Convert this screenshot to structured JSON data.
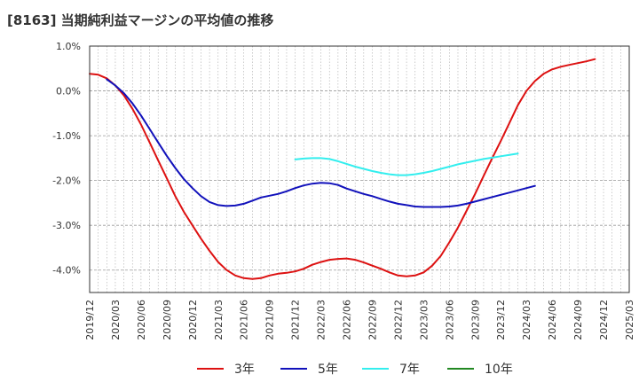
{
  "title": "[8163]  当期純利益マージンの平均値の推移",
  "chart_data": {
    "type": "line",
    "title": "[8163]  当期純利益マージンの平均値の推移",
    "xlabel": "",
    "ylabel": "",
    "ylim": [
      -4.5,
      1.0
    ],
    "y_ticks": [
      1.0,
      0.0,
      -1.0,
      -2.0,
      -3.0,
      -4.0
    ],
    "y_tick_labels": [
      "1.0%",
      "0.0%",
      "-1.0%",
      "-2.0%",
      "-3.0%",
      "-4.0%"
    ],
    "x_tick_labels": [
      "2019/12",
      "2020/03",
      "2020/06",
      "2020/09",
      "2020/12",
      "2021/03",
      "2021/06",
      "2021/09",
      "2021/12",
      "2022/03",
      "2022/06",
      "2022/09",
      "2022/12",
      "2023/03",
      "2023/06",
      "2023/09",
      "2023/12",
      "2024/03",
      "2024/06",
      "2024/09",
      "2024/12",
      "2025/03"
    ],
    "grid": true,
    "legend_position": "bottom",
    "series": [
      {
        "name": "3年",
        "color": "#dd1111",
        "points": [
          [
            "2019/12",
            0.38
          ],
          [
            "2020/01",
            0.36
          ],
          [
            "2020/02",
            0.28
          ],
          [
            "2020/03",
            0.12
          ],
          [
            "2020/04",
            -0.1
          ],
          [
            "2020/05",
            -0.4
          ],
          [
            "2020/06",
            -0.75
          ],
          [
            "2020/07",
            -1.15
          ],
          [
            "2020/08",
            -1.55
          ],
          [
            "2020/09",
            -1.95
          ],
          [
            "2020/10",
            -2.35
          ],
          [
            "2020/11",
            -2.7
          ],
          [
            "2020/12",
            -3.0
          ],
          [
            "2021/01",
            -3.3
          ],
          [
            "2021/02",
            -3.57
          ],
          [
            "2021/03",
            -3.82
          ],
          [
            "2021/04",
            -4.0
          ],
          [
            "2021/05",
            -4.12
          ],
          [
            "2021/06",
            -4.18
          ],
          [
            "2021/07",
            -4.2
          ],
          [
            "2021/08",
            -4.18
          ],
          [
            "2021/09",
            -4.12
          ],
          [
            "2021/10",
            -4.08
          ],
          [
            "2021/11",
            -4.06
          ],
          [
            "2021/12",
            -4.03
          ],
          [
            "2022/01",
            -3.97
          ],
          [
            "2022/02",
            -3.88
          ],
          [
            "2022/03",
            -3.82
          ],
          [
            "2022/04",
            -3.77
          ],
          [
            "2022/05",
            -3.75
          ],
          [
            "2022/06",
            -3.74
          ],
          [
            "2022/07",
            -3.77
          ],
          [
            "2022/08",
            -3.83
          ],
          [
            "2022/09",
            -3.9
          ],
          [
            "2022/10",
            -3.97
          ],
          [
            "2022/11",
            -4.05
          ],
          [
            "2022/12",
            -4.12
          ],
          [
            "2023/01",
            -4.14
          ],
          [
            "2023/02",
            -4.12
          ],
          [
            "2023/03",
            -4.05
          ],
          [
            "2023/04",
            -3.9
          ],
          [
            "2023/05",
            -3.68
          ],
          [
            "2023/06",
            -3.38
          ],
          [
            "2023/07",
            -3.05
          ],
          [
            "2023/08",
            -2.68
          ],
          [
            "2023/09",
            -2.3
          ],
          [
            "2023/10",
            -1.9
          ],
          [
            "2023/11",
            -1.5
          ],
          [
            "2023/12",
            -1.12
          ],
          [
            "2024/01",
            -0.72
          ],
          [
            "2024/02",
            -0.32
          ],
          [
            "2024/03",
            0.0
          ],
          [
            "2024/04",
            0.22
          ],
          [
            "2024/05",
            0.38
          ],
          [
            "2024/06",
            0.48
          ],
          [
            "2024/07",
            0.54
          ],
          [
            "2024/08",
            0.58
          ],
          [
            "2024/09",
            0.62
          ],
          [
            "2024/10",
            0.66
          ],
          [
            "2024/11",
            0.71
          ]
        ]
      },
      {
        "name": "5年",
        "color": "#1111bb",
        "points": [
          [
            "2020/02",
            0.26
          ],
          [
            "2020/03",
            0.12
          ],
          [
            "2020/04",
            -0.05
          ],
          [
            "2020/05",
            -0.28
          ],
          [
            "2020/06",
            -0.55
          ],
          [
            "2020/07",
            -0.85
          ],
          [
            "2020/08",
            -1.15
          ],
          [
            "2020/09",
            -1.45
          ],
          [
            "2020/10",
            -1.72
          ],
          [
            "2020/11",
            -1.97
          ],
          [
            "2020/12",
            -2.17
          ],
          [
            "2021/01",
            -2.35
          ],
          [
            "2021/02",
            -2.48
          ],
          [
            "2021/03",
            -2.55
          ],
          [
            "2021/04",
            -2.57
          ],
          [
            "2021/05",
            -2.56
          ],
          [
            "2021/06",
            -2.52
          ],
          [
            "2021/07",
            -2.45
          ],
          [
            "2021/08",
            -2.38
          ],
          [
            "2021/09",
            -2.34
          ],
          [
            "2021/10",
            -2.3
          ],
          [
            "2021/11",
            -2.24
          ],
          [
            "2021/12",
            -2.17
          ],
          [
            "2022/01",
            -2.11
          ],
          [
            "2022/02",
            -2.07
          ],
          [
            "2022/03",
            -2.05
          ],
          [
            "2022/04",
            -2.06
          ],
          [
            "2022/05",
            -2.1
          ],
          [
            "2022/06",
            -2.18
          ],
          [
            "2022/07",
            -2.24
          ],
          [
            "2022/08",
            -2.3
          ],
          [
            "2022/09",
            -2.35
          ],
          [
            "2022/10",
            -2.41
          ],
          [
            "2022/11",
            -2.47
          ],
          [
            "2022/12",
            -2.52
          ],
          [
            "2023/01",
            -2.55
          ],
          [
            "2023/02",
            -2.58
          ],
          [
            "2023/03",
            -2.59
          ],
          [
            "2023/04",
            -2.59
          ],
          [
            "2023/05",
            -2.59
          ],
          [
            "2023/06",
            -2.58
          ],
          [
            "2023/07",
            -2.56
          ],
          [
            "2023/08",
            -2.52
          ],
          [
            "2023/09",
            -2.47
          ],
          [
            "2023/10",
            -2.42
          ],
          [
            "2023/11",
            -2.37
          ],
          [
            "2023/12",
            -2.32
          ],
          [
            "2024/01",
            -2.27
          ],
          [
            "2024/02",
            -2.22
          ],
          [
            "2024/03",
            -2.17
          ],
          [
            "2024/04",
            -2.12
          ]
        ]
      },
      {
        "name": "7年",
        "color": "#33eeee",
        "points": [
          [
            "2021/12",
            -1.53
          ],
          [
            "2022/01",
            -1.51
          ],
          [
            "2022/02",
            -1.5
          ],
          [
            "2022/03",
            -1.5
          ],
          [
            "2022/04",
            -1.52
          ],
          [
            "2022/05",
            -1.57
          ],
          [
            "2022/06",
            -1.63
          ],
          [
            "2022/07",
            -1.69
          ],
          [
            "2022/08",
            -1.74
          ],
          [
            "2022/09",
            -1.79
          ],
          [
            "2022/10",
            -1.83
          ],
          [
            "2022/11",
            -1.86
          ],
          [
            "2022/12",
            -1.88
          ],
          [
            "2023/01",
            -1.88
          ],
          [
            "2023/02",
            -1.86
          ],
          [
            "2023/03",
            -1.83
          ],
          [
            "2023/04",
            -1.79
          ],
          [
            "2023/05",
            -1.74
          ],
          [
            "2023/06",
            -1.69
          ],
          [
            "2023/07",
            -1.64
          ],
          [
            "2023/08",
            -1.6
          ],
          [
            "2023/09",
            -1.56
          ],
          [
            "2023/10",
            -1.52
          ],
          [
            "2023/11",
            -1.49
          ],
          [
            "2023/12",
            -1.46
          ],
          [
            "2024/01",
            -1.43
          ],
          [
            "2024/02",
            -1.4
          ]
        ]
      },
      {
        "name": "10年",
        "color": "#228822",
        "points": []
      }
    ]
  }
}
